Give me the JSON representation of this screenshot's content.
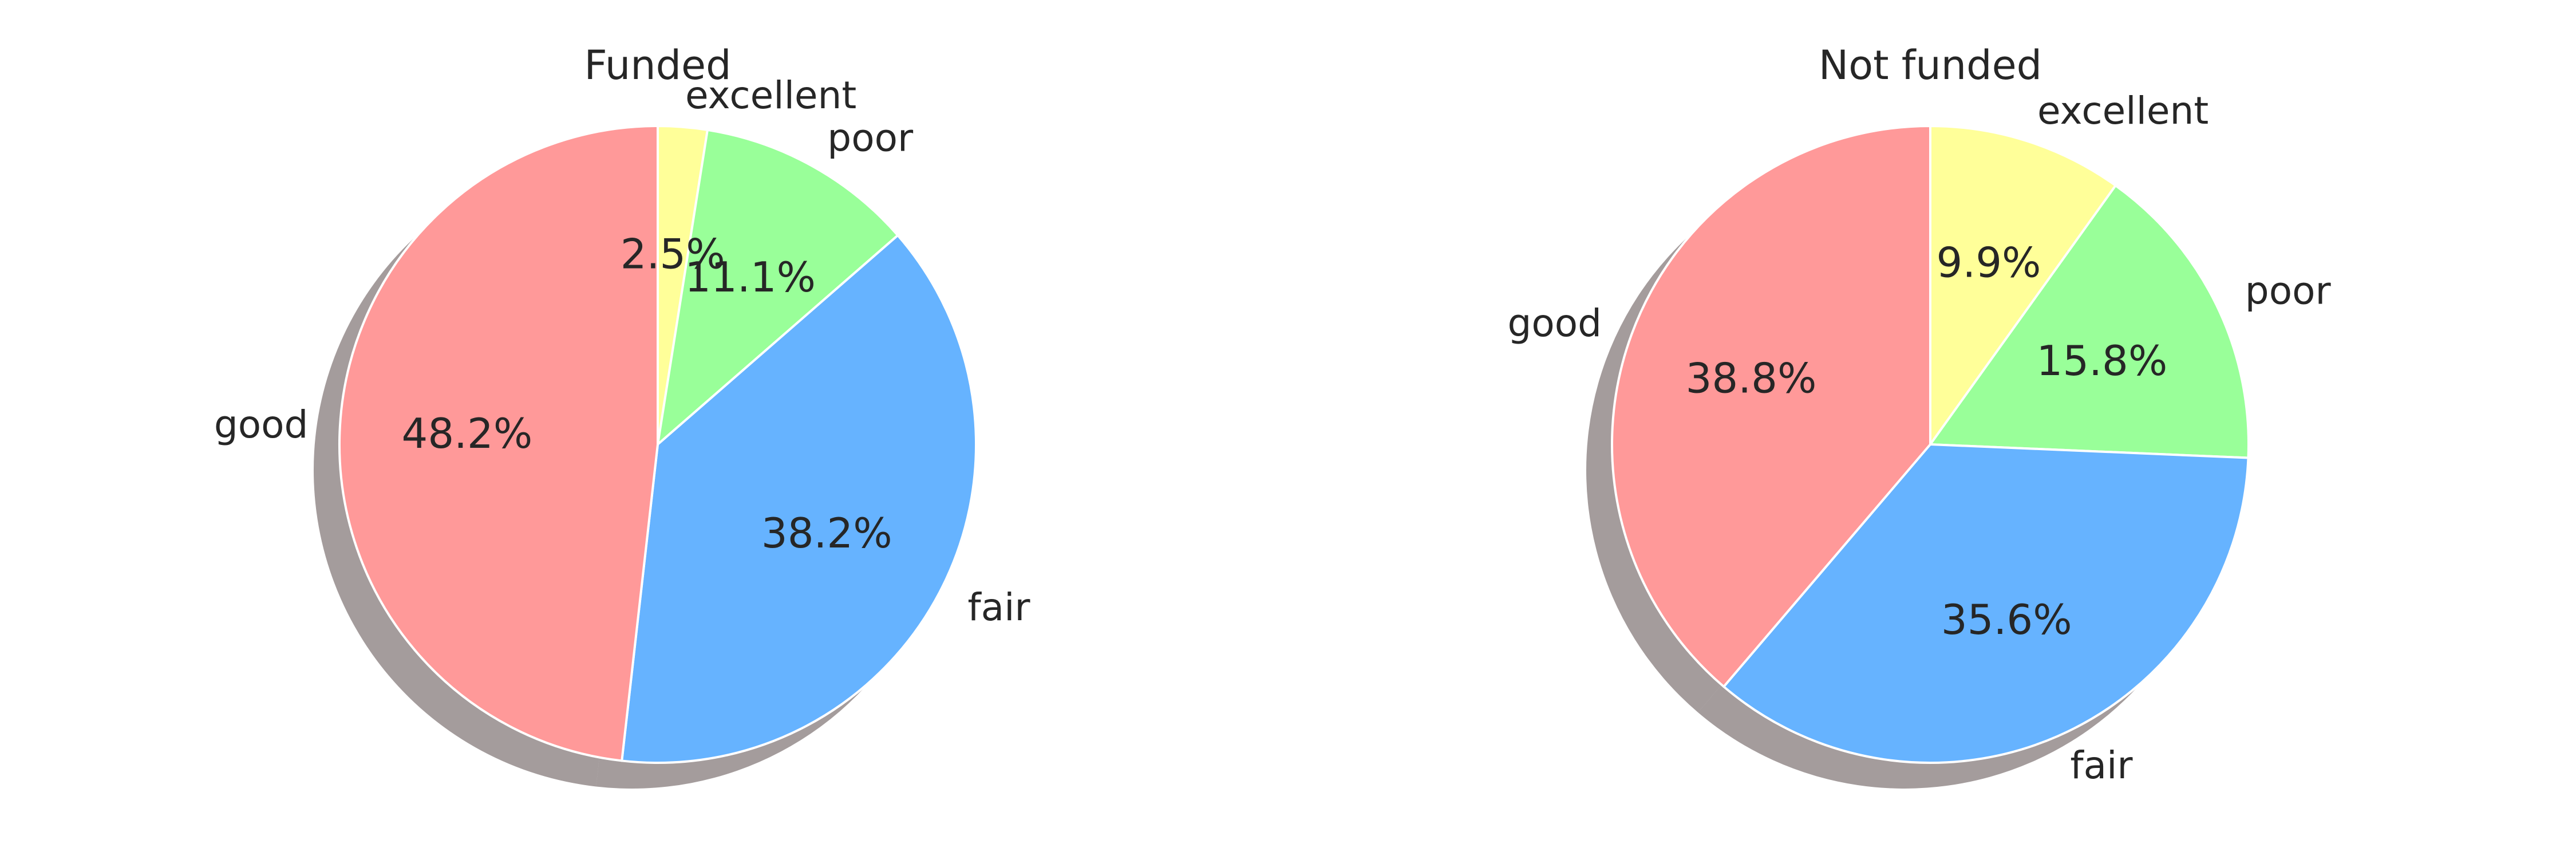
{
  "chart_data": [
    {
      "type": "pie",
      "title": "Funded",
      "categories": [
        "excellent",
        "poor",
        "fair",
        "good"
      ],
      "values": [
        2.5,
        11.1,
        38.2,
        48.2
      ],
      "value_labels": [
        "2.5%",
        "11.1%",
        "38.2%",
        "48.2%"
      ],
      "colors": [
        "#ffff99",
        "#99ff99",
        "#66b3ff",
        "#ff9999"
      ],
      "start_angle_deg": 90,
      "direction": "clockwise",
      "shadow": true,
      "legend": "none"
    },
    {
      "type": "pie",
      "title": "Not funded",
      "categories": [
        "excellent",
        "poor",
        "fair",
        "good"
      ],
      "values": [
        9.9,
        15.8,
        35.6,
        38.8
      ],
      "value_labels": [
        "9.9%",
        "15.8%",
        "35.6%",
        "38.8%"
      ],
      "colors": [
        "#ffff99",
        "#99ff99",
        "#66b3ff",
        "#ff9999"
      ],
      "start_angle_deg": 90,
      "direction": "clockwise",
      "shadow": true,
      "legend": "none"
    }
  ]
}
